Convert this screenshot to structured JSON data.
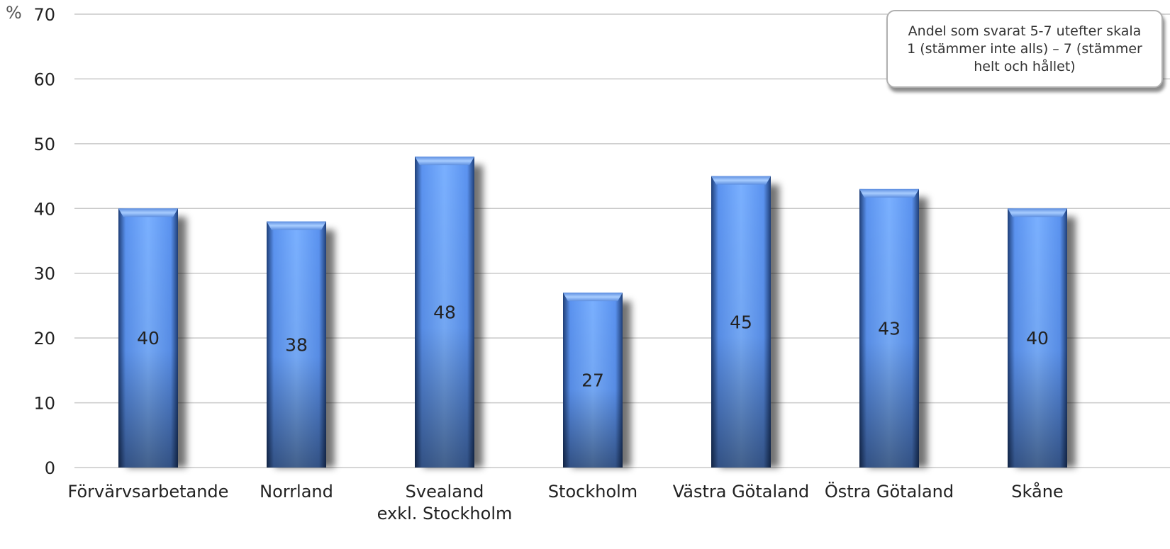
{
  "colors": {
    "bar_light": "#7ab0ff",
    "bar_mid": "#5b93f0",
    "bar_dark": "#1f3f78",
    "grid": "#c8c8c8",
    "text": "#222222"
  },
  "chart_data": {
    "type": "bar",
    "unit_label": "%",
    "categories": [
      "Förvärvsarbetande",
      "Norrland",
      "Svealand\nexkl. Stockholm",
      "Stockholm",
      "Västra Götaland",
      "Östra Götaland",
      "Skåne"
    ],
    "values": [
      40,
      38,
      48,
      27,
      45,
      43,
      40
    ],
    "ylim": [
      0,
      70
    ],
    "yticks": [
      0,
      10,
      20,
      30,
      40,
      50,
      60,
      70
    ],
    "grid": true,
    "legend": "none",
    "annotation": "Andel som svarat 5-7 utefter skala 1 (stämmer inte alls) – 7 (stämmer helt och hållet)",
    "data_labels": true
  }
}
